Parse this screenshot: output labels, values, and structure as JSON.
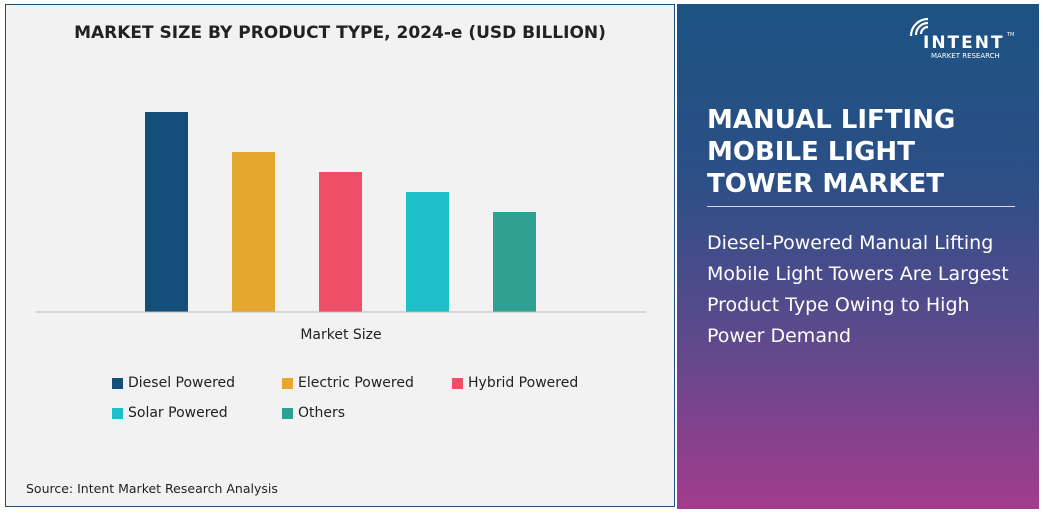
{
  "chart_data": {
    "type": "bar",
    "title": "MARKET SIZE BY PRODUCT TYPE, 2024-e (USD BILLION)",
    "xlabel": "Market Size",
    "ylabel": "",
    "categories": [
      "Diesel Powered",
      "Electric Powered",
      "Hybrid Powered",
      "Solar Powered",
      "Others"
    ],
    "values": [
      10,
      8,
      7,
      6,
      5
    ],
    "colors": [
      "#134f7a",
      "#e5a82e",
      "#ef4e68",
      "#1dbfc9",
      "#2fa193"
    ],
    "grid": false,
    "legend_placement": "bottom"
  },
  "source": "Source: Intent Market Research Analysis",
  "panel": {
    "title": "MANUAL LIFTING MOBILE LIGHT TOWER MARKET",
    "subtitle": "Diesel-Powered Manual Lifting Mobile Light Towers Are Largest Product Type Owing to High Power Demand"
  },
  "logo": {
    "name": "INTENT",
    "tagline": "MARKET RESEARCH",
    "tm": "TM"
  }
}
